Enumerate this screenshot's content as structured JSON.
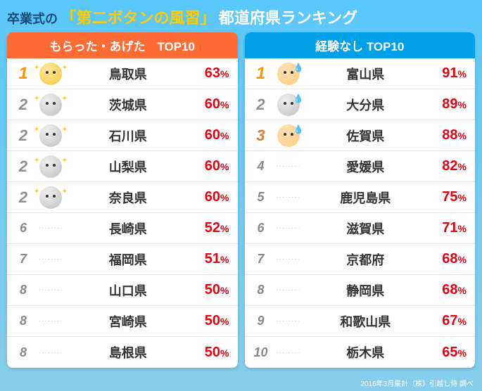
{
  "header": {
    "prefix": "卒業式の",
    "main": "「第二ボタンの風習」",
    "suffix": "都道府県ランキング"
  },
  "left_panel": {
    "title": "もらった・あげた　TOP10",
    "header_color": "#ff6b35",
    "rows": [
      {
        "rank": 1,
        "rank_class": "top1",
        "icon": "gold-sparkle",
        "prefecture": "鳥取県",
        "percent": 63
      },
      {
        "rank": 2,
        "rank_class": "top2",
        "icon": "silver-sparkle",
        "prefecture": "茨城県",
        "percent": 60
      },
      {
        "rank": 2,
        "rank_class": "top2",
        "icon": "silver-sparkle",
        "prefecture": "石川県",
        "percent": 60
      },
      {
        "rank": 2,
        "rank_class": "top2",
        "icon": "silver-sparkle",
        "prefecture": "山梨県",
        "percent": 60
      },
      {
        "rank": 2,
        "rank_class": "top2",
        "icon": "silver-sparkle",
        "prefecture": "奈良県",
        "percent": 60
      },
      {
        "rank": 6,
        "rank_class": "normal",
        "icon": "dots",
        "prefecture": "長崎県",
        "percent": 52
      },
      {
        "rank": 7,
        "rank_class": "normal",
        "icon": "dots",
        "prefecture": "福岡県",
        "percent": 51
      },
      {
        "rank": 8,
        "rank_class": "normal",
        "icon": "dots",
        "prefecture": "山口県",
        "percent": 50
      },
      {
        "rank": 8,
        "rank_class": "normal",
        "icon": "dots",
        "prefecture": "宮崎県",
        "percent": 50
      },
      {
        "rank": 8,
        "rank_class": "normal",
        "icon": "dots",
        "prefecture": "島根県",
        "percent": 50
      }
    ]
  },
  "right_panel": {
    "title": "経験なし TOP10",
    "header_color": "#00a0e9",
    "rows": [
      {
        "rank": 1,
        "rank_class": "top1",
        "icon": "sad-gold",
        "prefecture": "富山県",
        "percent": 91
      },
      {
        "rank": 2,
        "rank_class": "top2",
        "icon": "sad-silver",
        "prefecture": "大分県",
        "percent": 89
      },
      {
        "rank": 3,
        "rank_class": "top3",
        "icon": "sad-gold",
        "prefecture": "佐賀県",
        "percent": 88
      },
      {
        "rank": 4,
        "rank_class": "normal",
        "icon": "dots",
        "prefecture": "愛媛県",
        "percent": 82
      },
      {
        "rank": 5,
        "rank_class": "normal",
        "icon": "dots",
        "prefecture": "鹿児島県",
        "percent": 75
      },
      {
        "rank": 6,
        "rank_class": "normal",
        "icon": "dots",
        "prefecture": "滋賀県",
        "percent": 71
      },
      {
        "rank": 7,
        "rank_class": "normal",
        "icon": "dots",
        "prefecture": "京都府",
        "percent": 68
      },
      {
        "rank": 8,
        "rank_class": "normal",
        "icon": "dots",
        "prefecture": "静岡県",
        "percent": 68
      },
      {
        "rank": 9,
        "rank_class": "normal",
        "icon": "dots",
        "prefecture": "和歌山県",
        "percent": 67
      },
      {
        "rank": 10,
        "rank_class": "normal",
        "icon": "dots",
        "prefecture": "栃木県",
        "percent": 65
      }
    ]
  },
  "footer": "2016年3月集計（株）引越し侍 調べ",
  "colors": {
    "background_top": "#5ac8fa",
    "background_bottom": "#87ceeb",
    "percent_color": "#e60012",
    "gold": "#f5c542",
    "silver": "#bfbfbf"
  }
}
